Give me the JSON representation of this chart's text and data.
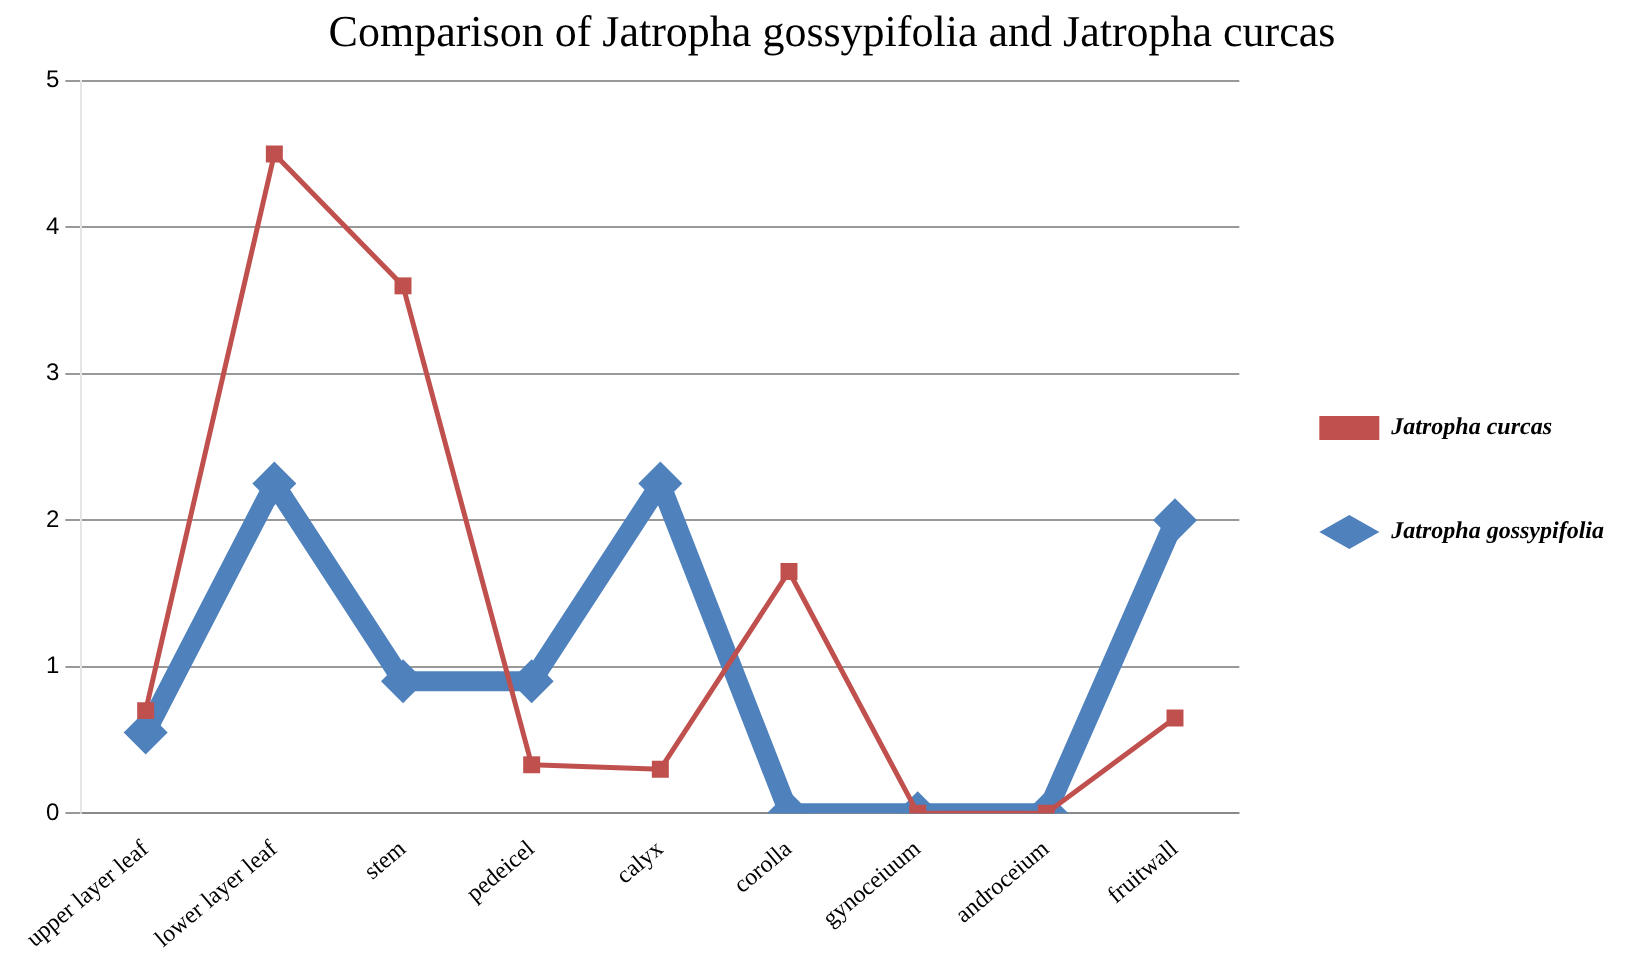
{
  "chart_data": {
    "type": "line",
    "title": "Comparison of Jatropha gossypifolia and Jatropha curcas",
    "categories": [
      "upper layer leaf",
      "lower layer leaf",
      "stem",
      "pedeicel",
      "calyx",
      "corolla",
      "gynoceiuum",
      "androceium",
      "fruitwall"
    ],
    "series": [
      {
        "name": "Jatropha gossypifolia",
        "color": "#4f81bd",
        "marker": "diamond",
        "values": [
          0.55,
          2.25,
          0.9,
          0.9,
          2.25,
          0,
          0,
          0,
          2.0
        ]
      },
      {
        "name": "Jatropha curcas",
        "color": "#c0504d",
        "marker": "square",
        "values": [
          0.7,
          4.5,
          3.6,
          0.33,
          0.3,
          1.65,
          0,
          0,
          0.65
        ]
      }
    ],
    "ylim": [
      0,
      5
    ],
    "yticks": [
      0,
      1,
      2,
      3,
      4,
      5
    ],
    "grid": "y",
    "legend": "right"
  }
}
